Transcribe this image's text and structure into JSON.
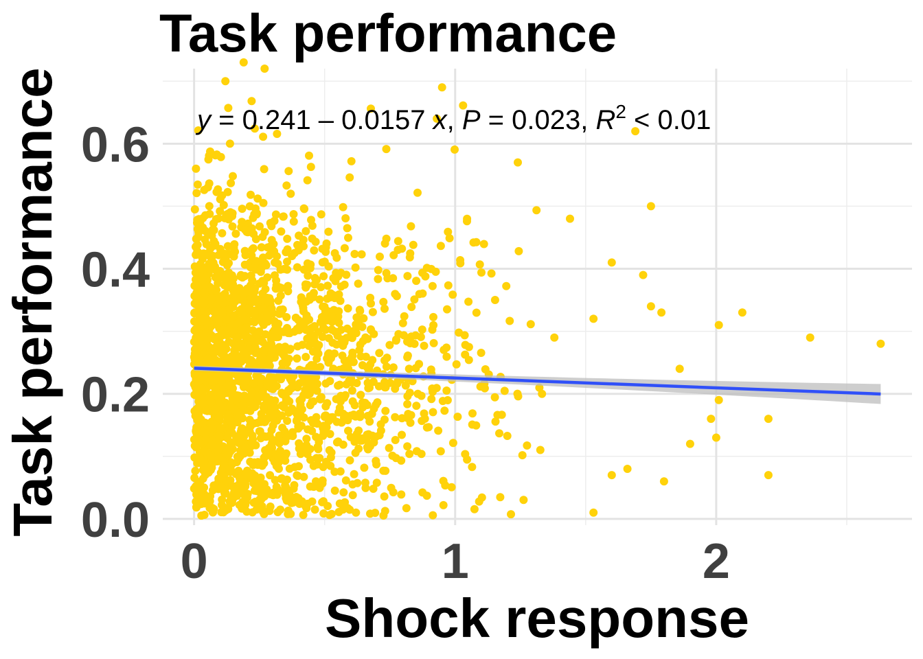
{
  "chart_data": {
    "type": "scatter",
    "title": "Task performance",
    "xlabel": "Shock response",
    "ylabel": "Task performance",
    "xlim": [
      -0.12,
      2.75
    ],
    "ylim": [
      -0.01,
      0.72
    ],
    "x_ticks": [
      0,
      1,
      2
    ],
    "x_tick_labels": [
      "0",
      "1",
      "2"
    ],
    "y_ticks": [
      0.0,
      0.2,
      0.4,
      0.6
    ],
    "y_tick_labels": [
      "0.0",
      "0.2",
      "0.4",
      "0.6"
    ],
    "grid": true,
    "point_color": "#FFD20A",
    "fit_color": "#3050F8",
    "ribbon_color": "#BEBEBE",
    "regression": {
      "intercept": 0.241,
      "slope": -0.0157,
      "x_range": [
        0,
        2.63
      ],
      "ci_halfwidth_low": 0.004,
      "ci_halfwidth_high": 0.016
    },
    "annotation": {
      "y_sym": "y",
      "eq_body": " = 0.241 – 0.0157 ",
      "x_sym": "x",
      "sep1": ", ",
      "p_sym": "P",
      "p_body": " = 0.023, ",
      "r_sym": "R",
      "r_exp": "2",
      "r_body": " < 0.01"
    },
    "outlier_points": [
      [
        0.95,
        0.69
      ],
      [
        0.19,
        0.73
      ],
      [
        0.27,
        0.72
      ],
      [
        0.12,
        0.7
      ],
      [
        0.93,
        0.64
      ],
      [
        1.69,
        0.62
      ],
      [
        1.24,
        0.57
      ],
      [
        1.75,
        0.5
      ],
      [
        1.44,
        0.48
      ],
      [
        1.6,
        0.41
      ],
      [
        1.72,
        0.39
      ],
      [
        1.75,
        0.34
      ],
      [
        1.79,
        0.33
      ],
      [
        2.1,
        0.33
      ],
      [
        2.01,
        0.31
      ],
      [
        2.36,
        0.29
      ],
      [
        2.63,
        0.28
      ],
      [
        1.53,
        0.32
      ],
      [
        1.86,
        0.24
      ],
      [
        1.98,
        0.16
      ],
      [
        2.01,
        0.19
      ],
      [
        2.2,
        0.16
      ],
      [
        2.0,
        0.13
      ],
      [
        1.9,
        0.12
      ],
      [
        2.2,
        0.07
      ],
      [
        1.8,
        0.06
      ],
      [
        1.53,
        0.01
      ],
      [
        1.66,
        0.08
      ],
      [
        1.6,
        0.07
      ],
      [
        1.38,
        0.29
      ]
    ],
    "dense_cloud": {
      "n": 2200,
      "x_center": 0.0,
      "x_decay": 0.32,
      "x_max": 1.45,
      "y_mean": 0.24,
      "y_sd": 0.135,
      "y_range": [
        0.005,
        0.68
      ],
      "seed": 7
    }
  }
}
